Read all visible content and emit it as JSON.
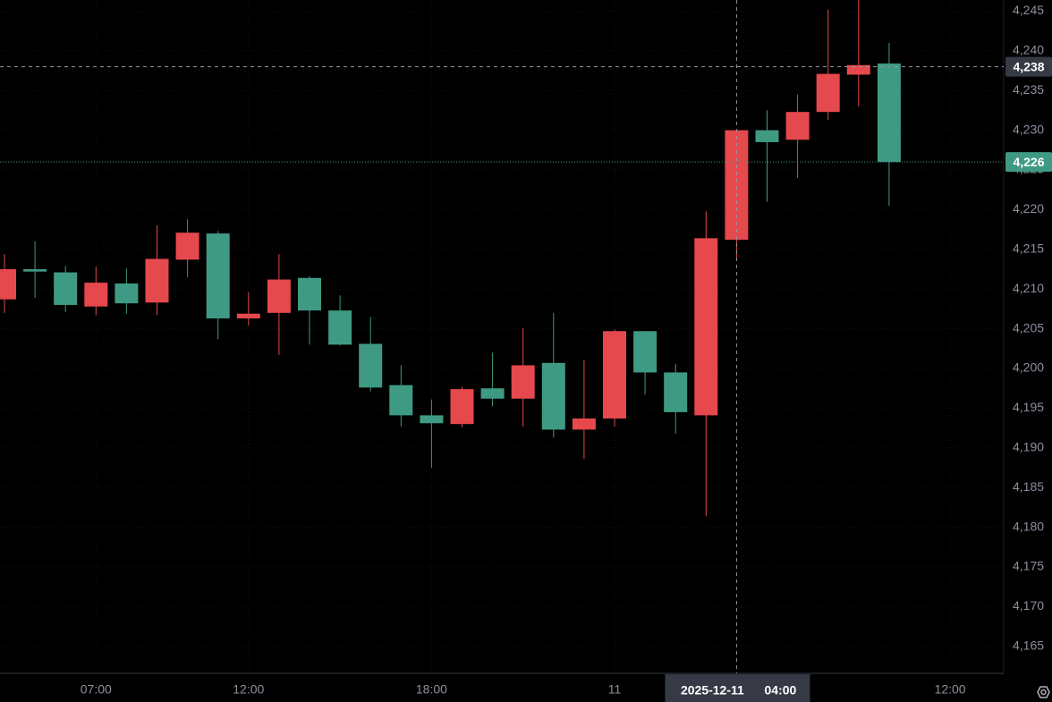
{
  "chart_data": {
    "type": "candlestick",
    "categories": [
      null,
      null,
      null,
      "07:00",
      null,
      null,
      null,
      null,
      "12:00",
      null,
      null,
      null,
      null,
      null,
      "18:00",
      null,
      null,
      null,
      null,
      null,
      "11",
      null,
      null,
      null,
      null,
      null,
      null,
      null,
      null,
      null,
      null,
      "12:00"
    ],
    "open": [
      4208.7,
      4212.5,
      4212.1,
      4207.8,
      4210.7,
      4208.3,
      4213.7,
      4217.0,
      4206.3,
      4207.0,
      4211.4,
      4207.3,
      4203.1,
      4197.9,
      4194.1,
      4193.0,
      4197.5,
      4196.2,
      4200.7,
      4192.3,
      4193.7,
      4204.7,
      4199.5,
      4194.1,
      4216.2,
      4230.0,
      4228.8,
      4232.3,
      4237.0,
      4238.4,
      null,
      null
    ],
    "high": [
      4214.4,
      4216.0,
      4212.9,
      4212.8,
      4212.6,
      4218.0,
      4218.8,
      4217.3,
      4209.6,
      4214.4,
      4211.6,
      4209.2,
      4206.5,
      4200.4,
      4196.1,
      4197.7,
      4202.0,
      4205.1,
      4207.0,
      4201.1,
      4204.9,
      4204.7,
      4200.6,
      4219.8,
      4230.0,
      4232.5,
      4234.5,
      4245.2,
      4246.5,
      4241.0,
      null,
      null
    ],
    "low": [
      4207.0,
      4208.9,
      4207.1,
      4206.7,
      4206.9,
      4206.7,
      4211.5,
      4203.7,
      4205.4,
      4201.7,
      4203.0,
      4202.9,
      4197.1,
      4192.7,
      4187.5,
      4192.6,
      4195.2,
      4192.7,
      4191.3,
      4188.6,
      4192.7,
      4196.7,
      4191.8,
      4181.4,
      4213.7,
      4221.0,
      4224.0,
      4231.3,
      4233.0,
      4220.5,
      null,
      null
    ],
    "close": [
      4212.5,
      4212.2,
      4208.0,
      4210.8,
      4208.2,
      4213.8,
      4217.1,
      4206.3,
      4206.9,
      4211.2,
      4207.3,
      4203.0,
      4197.6,
      4194.1,
      4193.1,
      4197.4,
      4196.2,
      4200.4,
      4192.3,
      4193.7,
      4204.7,
      4199.5,
      4194.5,
      4216.4,
      4230.0,
      4228.5,
      4232.3,
      4237.1,
      4238.2,
      4226.0,
      null,
      null
    ],
    "up_color": "#e5484d",
    "down_color": "#3f9a83",
    "ylim": [
      4161.6,
      4246.4
    ],
    "yticks": [
      {
        "value": 4165,
        "label": "4,165"
      },
      {
        "value": 4170,
        "label": "4,170"
      },
      {
        "value": 4175,
        "label": "4,175"
      },
      {
        "value": 4180,
        "label": "4,180"
      },
      {
        "value": 4185,
        "label": "4,185"
      },
      {
        "value": 4190,
        "label": "4,190"
      },
      {
        "value": 4195,
        "label": "4,195"
      },
      {
        "value": 4200,
        "label": "4,200"
      },
      {
        "value": 4205,
        "label": "4,205"
      },
      {
        "value": 4210,
        "label": "4,210"
      },
      {
        "value": 4215,
        "label": "4,215"
      },
      {
        "value": 4220,
        "label": "4,220"
      },
      {
        "value": 4225,
        "label": "4,225"
      },
      {
        "value": 4230,
        "label": "4,230"
      },
      {
        "value": 4235,
        "label": "4,235"
      },
      {
        "value": 4240,
        "label": "4,240"
      },
      {
        "value": 4245,
        "label": "4,245"
      }
    ],
    "grid": true,
    "crosshair": {
      "date": "2025-12-11",
      "time": "04:00",
      "price": {
        "value": 4238,
        "label": "4,238"
      }
    },
    "last_price": {
      "value": 4226,
      "label": "4,226"
    }
  }
}
